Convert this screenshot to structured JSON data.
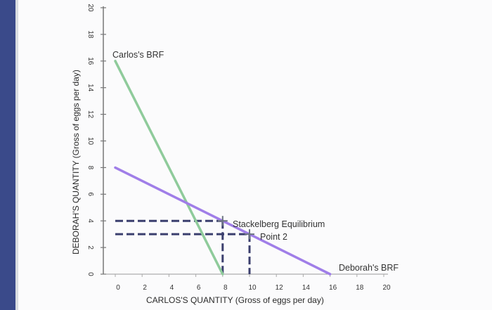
{
  "chart_data": {
    "type": "line",
    "xlabel": "CARLOS'S QUANTITY (Gross of eggs per day)",
    "ylabel": "DEBORAH'S QUANTITY (Gross of eggs per day)",
    "xlim": [
      0,
      20
    ],
    "ylim": [
      0,
      20
    ],
    "x_ticks": [
      "0",
      "2",
      "4",
      "6",
      "8",
      "10",
      "12",
      "14",
      "16",
      "18",
      "20"
    ],
    "y_ticks": [
      "0",
      "2",
      "4",
      "6",
      "8",
      "10",
      "12",
      "14",
      "16",
      "18",
      "20"
    ],
    "series": [
      {
        "name": "Carlos's BRF",
        "color": "#8fcb9b",
        "points": [
          [
            0,
            16
          ],
          [
            8,
            0
          ]
        ]
      },
      {
        "name": "Deborah's BRF",
        "color": "#a07ee8",
        "points": [
          [
            0,
            8
          ],
          [
            16,
            0
          ]
        ]
      }
    ],
    "annotations": [
      {
        "label": "Stackelberg Equilibrium",
        "x": 8,
        "y": 4
      },
      {
        "label": "Point 2",
        "x": 10,
        "y": 3
      }
    ],
    "series_labels": {
      "carlos": "Carlos's BRF",
      "deborah": "Deborah's BRF"
    },
    "colors": {
      "background": "#d9dde2",
      "plot": "#ffffff",
      "axis": "#777777",
      "dashed": "#3b3f6e"
    }
  }
}
